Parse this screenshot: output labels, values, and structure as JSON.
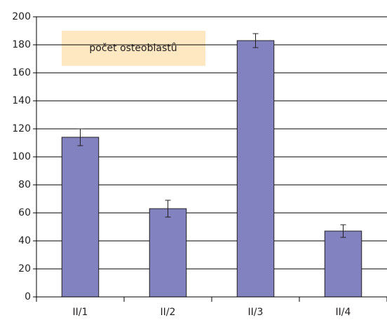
{
  "chart_data": {
    "type": "bar",
    "title": "počet osteoblastů",
    "categories": [
      "II/1",
      "II/2",
      "II/3",
      "II/4"
    ],
    "values": [
      114,
      63,
      183,
      47
    ],
    "errors": [
      6,
      6,
      5,
      4.5
    ],
    "color": "#8282c0",
    "ylim": [
      0,
      200
    ],
    "yticks": [
      0,
      20,
      40,
      60,
      80,
      100,
      120,
      140,
      160,
      180,
      200
    ],
    "grid": true
  }
}
